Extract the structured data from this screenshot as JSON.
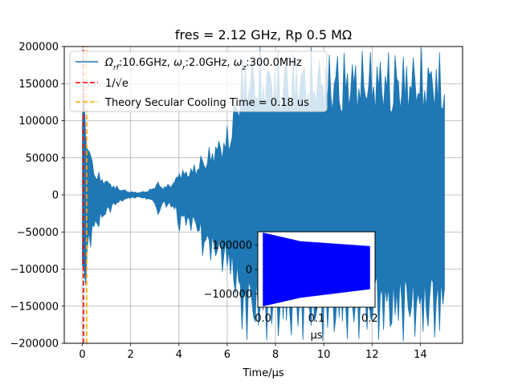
{
  "chart_data": [
    {
      "type": "line",
      "title": "fres = 2.12 GHz, Rp 0.5 MΩ",
      "xlabel": "Time/μs",
      "ylabel": "",
      "xlim": [
        -0.75,
        15.75
      ],
      "ylim": [
        -200000,
        200000
      ],
      "xticks": [
        0,
        2,
        4,
        6,
        8,
        10,
        12,
        14
      ],
      "xtick_labels": [
        "0",
        "2",
        "4",
        "6",
        "8",
        "10",
        "12",
        "14"
      ],
      "yticks": [
        -200000,
        -150000,
        -100000,
        -50000,
        0,
        50000,
        100000,
        150000,
        200000
      ],
      "ytick_labels": [
        "−200000",
        "−150000",
        "−100000",
        "−50000",
        "0",
        "50000",
        "100000",
        "150000",
        "200000"
      ],
      "grid": true,
      "legend_position": "upper-left",
      "series": [
        {
          "name": "Ωrf:10.6GHz, ωr:2.0GHz, ωz:300.0MHz",
          "style": "envelope",
          "color": "#1f77b4",
          "x": [
            0.0,
            0.1,
            0.2,
            0.35,
            0.5,
            0.7,
            1.0,
            1.3,
            1.6,
            2.0,
            2.4,
            2.8,
            3.0,
            3.1,
            3.3,
            3.6,
            3.9,
            4.0,
            4.1,
            4.5,
            4.9,
            5.0,
            5.1,
            5.3,
            5.6,
            5.9,
            6.0,
            6.1,
            6.4,
            6.6,
            6.9,
            7.0,
            7.5,
            8.0,
            9.0,
            10.0,
            11.0,
            12.0,
            13.0,
            14.0,
            15.0
          ],
          "upper": [
            175000,
            150000,
            95000,
            60000,
            40000,
            30000,
            22000,
            15000,
            9000,
            5000,
            4000,
            8000,
            14000,
            20000,
            12000,
            16000,
            25000,
            50000,
            35000,
            40000,
            55000,
            60000,
            55000,
            70000,
            80000,
            90000,
            95000,
            110000,
            150000,
            200000,
            200000,
            200000,
            200000,
            200000,
            200000,
            200000,
            200000,
            200000,
            200000,
            200000,
            200000
          ],
          "lower": [
            -170000,
            -150000,
            -95000,
            -75000,
            -55000,
            -45000,
            -30000,
            -18000,
            -10000,
            -5000,
            -4000,
            -8000,
            -12000,
            -40000,
            -15000,
            -18000,
            -25000,
            -60000,
            -40000,
            -50000,
            -60000,
            -100000,
            -80000,
            -90000,
            -100000,
            -110000,
            -115000,
            -125000,
            -150000,
            -200000,
            -200000,
            -200000,
            -200000,
            -200000,
            -200000,
            -200000,
            -200000,
            -200000,
            -200000,
            -200000,
            -200000
          ]
        },
        {
          "name": "1/√e",
          "style": "dashed",
          "color": "#ff0000",
          "x": [
            0.05,
            0.05
          ],
          "y": [
            -200000,
            200000
          ]
        },
        {
          "name": "Theory Secular Cooling Time = 0.18 us",
          "style": "dashed",
          "color": "#ffa500",
          "x": [
            0.18,
            0.18
          ],
          "y": [
            -200000,
            200000
          ]
        }
      ]
    },
    {
      "type": "area",
      "xlabel": "μs",
      "ylabel": "",
      "xlim": [
        -0.01,
        0.21
      ],
      "ylim": [
        -155000,
        155000
      ],
      "xticks": [
        0.0,
        0.1,
        0.2
      ],
      "xtick_labels": [
        "0.0",
        "0.1",
        "0.2"
      ],
      "yticks": [
        -100000,
        0,
        100000
      ],
      "ytick_labels": [
        "−100000",
        "0",
        "100000"
      ],
      "grid": false,
      "series": [
        {
          "color": "#0000ff",
          "x": [
            0.0,
            0.07,
            0.2
          ],
          "upper": [
            150000,
            115000,
            95000
          ],
          "lower": [
            -150000,
            -115000,
            -80000
          ]
        }
      ]
    }
  ]
}
